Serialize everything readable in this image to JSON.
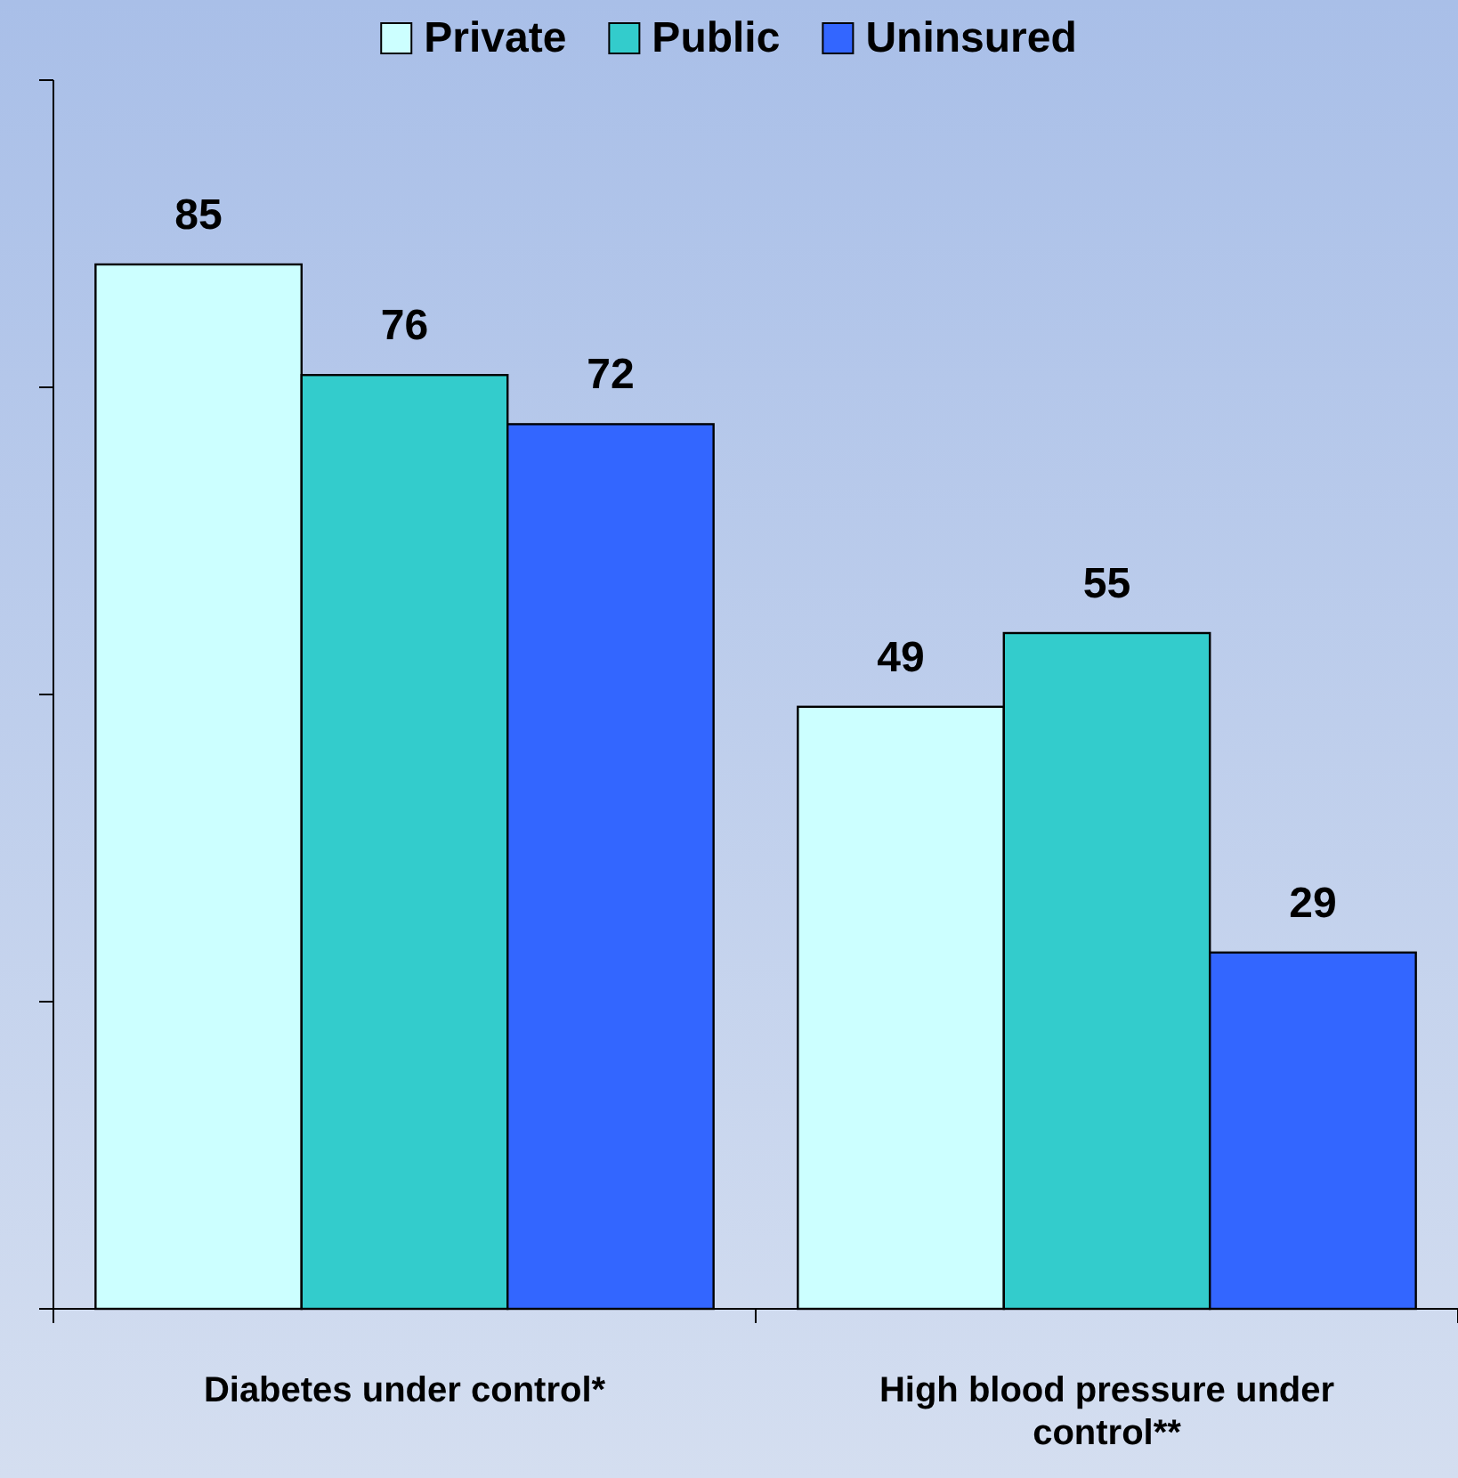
{
  "chart_data": {
    "type": "bar",
    "categories": [
      "Diabetes under control*",
      "High blood pressure under control**"
    ],
    "series": [
      {
        "name": "Private",
        "color": "#ccffff",
        "values": [
          85,
          49
        ]
      },
      {
        "name": "Public",
        "color": "#33cccc",
        "values": [
          76,
          55
        ]
      },
      {
        "name": "Uninsured",
        "color": "#3366ff",
        "values": [
          72,
          29
        ]
      }
    ],
    "ylim": [
      0,
      100
    ],
    "yticks": [
      {
        "value": 0,
        "label": null
      },
      {
        "value": 25,
        "label": null
      },
      {
        "value": 50,
        "label": null
      },
      {
        "value": 75,
        "label": null
      },
      {
        "value": 100,
        "label": null
      }
    ],
    "tick_labels": "x",
    "data_labels": true,
    "legend": "top",
    "grid": false
  }
}
